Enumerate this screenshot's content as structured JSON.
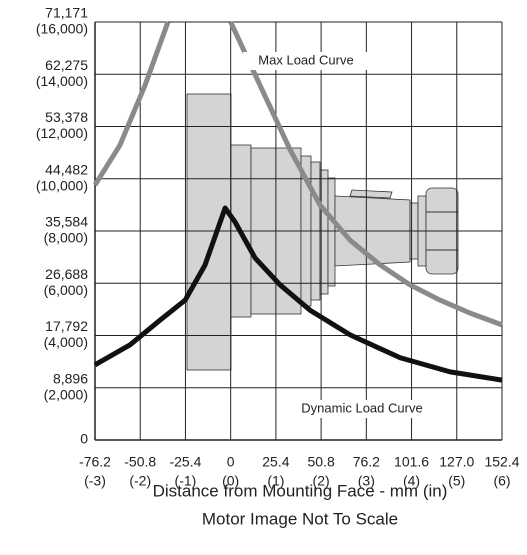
{
  "chart_data": {
    "type": "line",
    "xlabel": "Distance from Mounting Face - mm (in)",
    "subtitle": "Motor Image Not To Scale",
    "xlim": [
      -76.2,
      152.4
    ],
    "xticks": [
      {
        "value": -76.2,
        "label": "-76.2",
        "inch_label": "(-3)"
      },
      {
        "value": -50.8,
        "label": "-50.8",
        "inch_label": "(-2)"
      },
      {
        "value": -25.4,
        "label": "-25.4",
        "inch_label": "(-1)"
      },
      {
        "value": 0,
        "label": "0",
        "inch_label": "(0)"
      },
      {
        "value": 25.4,
        "label": "25.4",
        "inch_label": "(1)"
      },
      {
        "value": 50.8,
        "label": "50.8",
        "inch_label": "(2)"
      },
      {
        "value": 76.2,
        "label": "76.2",
        "inch_label": "(3)"
      },
      {
        "value": 101.6,
        "label": "101.6",
        "inch_label": "(4)"
      },
      {
        "value": 127.0,
        "label": "127.0",
        "inch_label": "(5)"
      },
      {
        "value": 152.4,
        "label": "152.4",
        "inch_label": "(6)"
      }
    ],
    "ylim": [
      0,
      71171
    ],
    "yticks": [
      0,
      {
        "value": 8896,
        "label": "8,896",
        "lbf_label": "(2,000)"
      },
      {
        "value": 17792,
        "label": "17,792",
        "lbf_label": "(4,000)"
      },
      {
        "value": 26688,
        "label": "26,688",
        "lbf_label": "(6,000)"
      },
      {
        "value": 35584,
        "label": "35,584",
        "lbf_label": "(8,000)"
      },
      {
        "value": 44482,
        "label": "44,482",
        "lbf_label": "(10,000)"
      },
      {
        "value": 53378,
        "label": "53,378",
        "lbf_label": "(12,000)"
      },
      {
        "value": 62275,
        "label": "62,275",
        "lbf_label": "(14,000)"
      },
      {
        "value": 71171,
        "label": "71,171",
        "lbf_label": "(16,000)"
      }
    ],
    "grid": true,
    "series": [
      {
        "name": "Max Load Curve",
        "color": "#8a8a8a",
        "x": [
          -76.2,
          -62.2,
          -48.1,
          -35.2,
          -17,
          0,
          16.5,
          33.4,
          50.2,
          67.1,
          84,
          100.8,
          117.7,
          134.5,
          152.4
        ],
        "values": [
          43400,
          50200,
          60400,
          71171,
          null,
          71171,
          60400,
          49400,
          40000,
          34000,
          29800,
          26400,
          23800,
          21600,
          19600
        ]
      },
      {
        "name": "Dynamic Load Curve",
        "color": "#111111",
        "x": [
          -76.2,
          -56.5,
          -39.7,
          -25.6,
          -14.4,
          -3.1,
          2.5,
          13.7,
          27.8,
          44.6,
          67.1,
          95.2,
          123.3,
          152.4
        ],
        "values": [
          12800,
          16200,
          20400,
          23800,
          29800,
          39500,
          37100,
          31000,
          26400,
          22100,
          17900,
          14000,
          11600,
          10200
        ]
      }
    ]
  }
}
